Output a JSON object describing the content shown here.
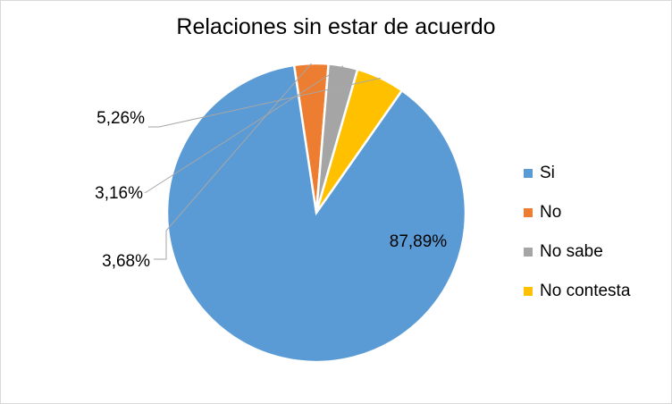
{
  "chart_data": {
    "type": "pie",
    "title": "Relaciones sin estar de acuerdo",
    "categories": [
      "Si",
      "No",
      "No sabe",
      "No contesta"
    ],
    "values": [
      87.89,
      3.68,
      3.16,
      5.26
    ],
    "data_labels": [
      "87,89%",
      "3,68%",
      "3,16%",
      "5,26%"
    ],
    "colors": [
      "#5b9bd5",
      "#ed7d31",
      "#a5a5a5",
      "#ffc000"
    ],
    "legend_position": "right"
  }
}
